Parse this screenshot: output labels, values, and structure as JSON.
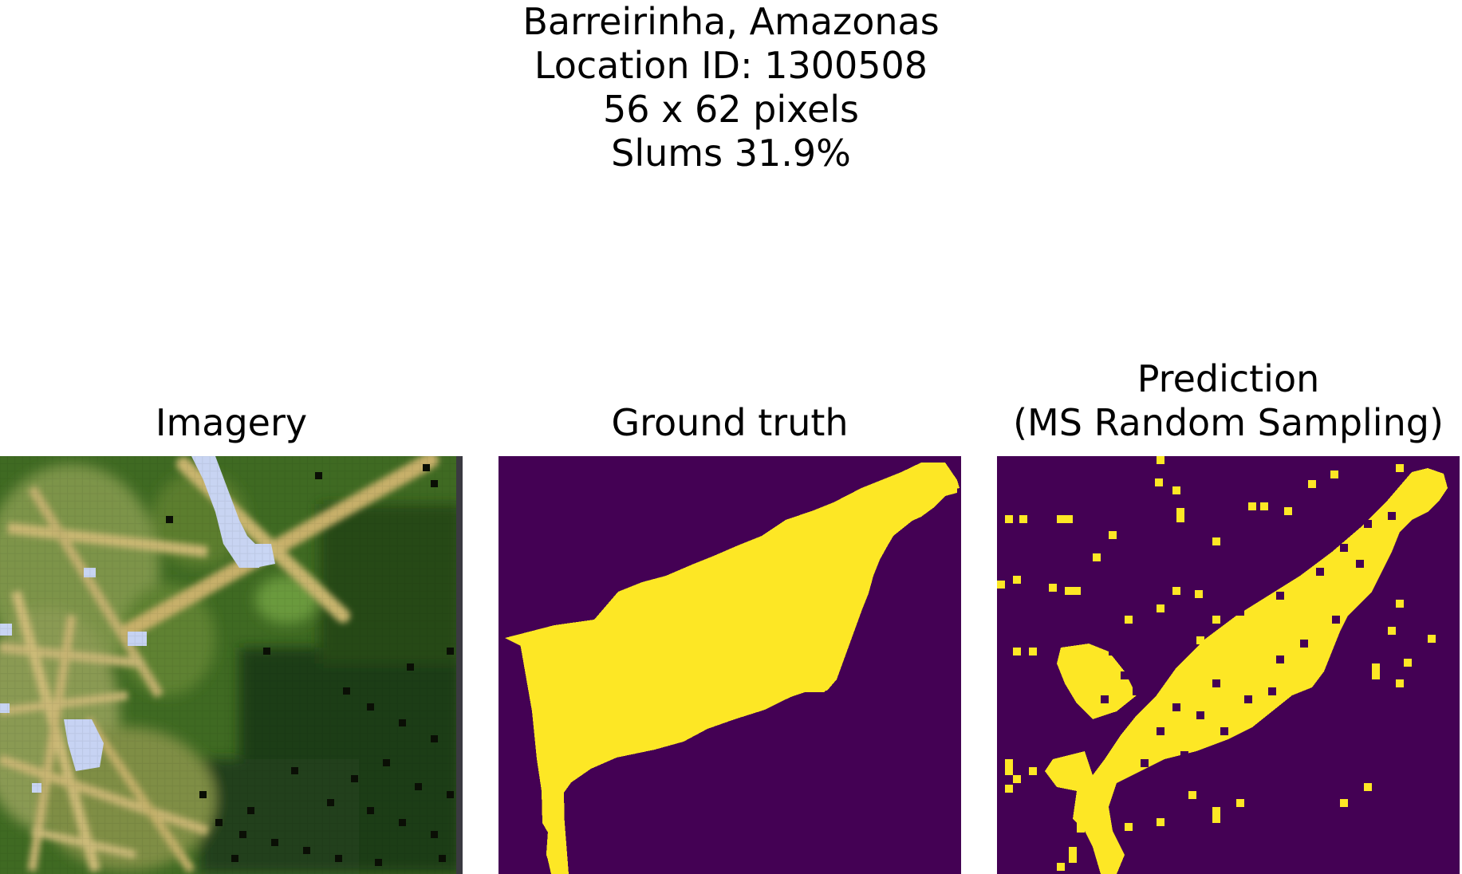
{
  "figure": {
    "title_lines": [
      "Barreirinha, Amazonas",
      "Location ID: 1300508",
      "56 x 62 pixels",
      "Slums 31.9%"
    ]
  },
  "panels": [
    {
      "title_lines": [
        "Imagery"
      ]
    },
    {
      "title_lines": [
        "Ground truth"
      ]
    },
    {
      "title_lines": [
        "Prediction",
        "(MS Random Sampling)"
      ]
    }
  ],
  "colors": {
    "background_class": "#440154",
    "slum_class": "#fde725",
    "vegetation_dark": "#1e3d12",
    "vegetation_light": "#6f8f3a",
    "urban": "#d8c27a",
    "water": "#c8d4f2"
  }
}
